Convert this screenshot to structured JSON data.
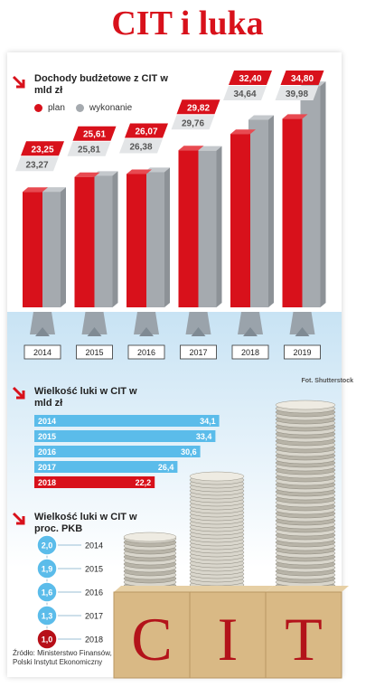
{
  "title": "CIT i luka",
  "credit": "Fot. Shutterstock",
  "footer": "Źródło: Ministerstwo Finansów,\nPolski Instytut Ekonomiczny",
  "colors": {
    "red": "#d8111b",
    "gray": "#a5aaaf",
    "blue": "#5bbcea",
    "darkred": "#b70f18"
  },
  "chart_data": [
    {
      "type": "bar",
      "title": "Dochody budżetowe z CIT w mld zł",
      "categories": [
        "2014",
        "2015",
        "2016",
        "2017",
        "2018",
        "2019"
      ],
      "series": [
        {
          "name": "plan",
          "values": [
            23.25,
            25.61,
            26.07,
            29.82,
            32.4,
            34.8
          ],
          "labels": [
            "23,25",
            "25,61",
            "26,07",
            "29,82",
            "32,40",
            "34,80"
          ]
        },
        {
          "name": "wykonanie",
          "values": [
            23.27,
            25.81,
            26.38,
            29.76,
            34.64,
            39.98
          ],
          "labels": [
            "23,27",
            "25,81",
            "26,38",
            "29,76",
            "34,64",
            "39,98"
          ]
        }
      ]
    },
    {
      "type": "bar",
      "title": "Wielkość luki w CIT w mld zł",
      "categories": [
        "2014",
        "2015",
        "2016",
        "2017",
        "2018"
      ],
      "values": [
        34.1,
        33.4,
        30.6,
        26.4,
        22.2
      ],
      "labels": [
        "34,1",
        "33,4",
        "30,6",
        "26,4",
        "22,2"
      ]
    },
    {
      "type": "table",
      "title": "Wielkość luki w CIT w proc. PKB",
      "categories": [
        "2014",
        "2015",
        "2016",
        "2017",
        "2018"
      ],
      "values": [
        2.0,
        1.9,
        1.6,
        1.3,
        1.0
      ],
      "labels": [
        "2,0",
        "1,9",
        "1,6",
        "1,3",
        "1,0"
      ]
    }
  ],
  "letters": [
    "C",
    "I",
    "T"
  ]
}
